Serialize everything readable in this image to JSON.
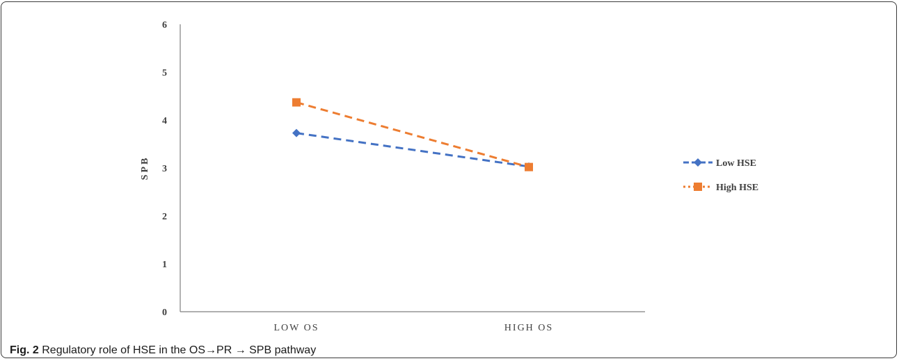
{
  "figure": {
    "label": "Fig. 2",
    "caption": "Regulatory role of HSE in the OS→PR → SPB pathway"
  },
  "chart_data": {
    "type": "line",
    "categories": [
      "LOW OS",
      "HIGH OS"
    ],
    "series": [
      {
        "name": "Low HSE",
        "values": [
          3.73,
          3.03
        ],
        "color": "#4472C4",
        "marker": "diamond",
        "line_style": "dashed"
      },
      {
        "name": "High HSE",
        "values": [
          4.37,
          3.02
        ],
        "color": "#ED7D31",
        "marker": "square",
        "line_style": "dashed"
      }
    ],
    "title": "",
    "xlabel": "",
    "ylabel": "SPB",
    "ylim": [
      0,
      6
    ],
    "yticks": [
      0,
      1,
      2,
      3,
      4,
      5,
      6
    ],
    "grid": false,
    "legend": "right"
  }
}
